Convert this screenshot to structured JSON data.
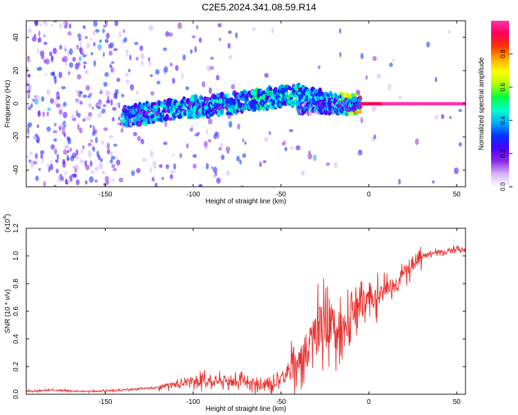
{
  "page": {
    "title": "C2E5.2024.341.08.59.R14"
  },
  "chart_data": [
    {
      "type": "heatmap",
      "title": "C2E5.2024.341.08.59.R14",
      "xlabel": "Height of straight line (km)",
      "ylabel": "Frequency (Hz)",
      "xlim": [
        -195,
        55
      ],
      "ylim": [
        -50,
        50
      ],
      "x_ticks": [
        -150,
        -100,
        -50,
        0,
        50
      ],
      "y_ticks": [
        -40,
        -20,
        0,
        20,
        40
      ],
      "colorbar": {
        "label": "Normalized spectral amplitude",
        "range": [
          0,
          1
        ],
        "ticks": [
          "0.0",
          "0.2",
          "0.4",
          "0.6",
          "0.8"
        ],
        "colormap": [
          "#ffffff",
          "#d9b3ff",
          "#8a2be2",
          "#4b00ff",
          "#0033ff",
          "#00aaff",
          "#00ffcc",
          "#00ff44",
          "#aaff00",
          "#ffff00",
          "#ffaa00",
          "#ff3300",
          "#ff0055",
          "#ff33aa"
        ]
      },
      "grid": false,
      "ridge": [
        {
          "x": -140,
          "f": -8,
          "amp": 0.45
        },
        {
          "x": -120,
          "f": -5,
          "amp": 0.5
        },
        {
          "x": -100,
          "f": -2,
          "amp": 0.5
        },
        {
          "x": -80,
          "f": 0,
          "amp": 0.5
        },
        {
          "x": -60,
          "f": 3,
          "amp": 0.55
        },
        {
          "x": -40,
          "f": 5,
          "amp": 0.55
        },
        {
          "x": -30,
          "f": 3,
          "amp": 0.5
        },
        {
          "x": -20,
          "f": 0,
          "amp": 0.55
        },
        {
          "x": -10,
          "f": 0,
          "amp": 0.8
        },
        {
          "x": 0,
          "f": 0,
          "amp": 0.95
        },
        {
          "x": 20,
          "f": 0,
          "amp": 0.98
        },
        {
          "x": 55,
          "f": 0,
          "amp": 1.0
        }
      ],
      "secondary_ridge": [
        {
          "x": -40,
          "f": -3,
          "amp": 0.4
        },
        {
          "x": -20,
          "f": -2,
          "amp": 0.45
        },
        {
          "x": -5,
          "f": 0,
          "amp": 0.5
        }
      ]
    },
    {
      "type": "line",
      "xlabel": "Height of straight line (km)",
      "ylabel": "SNR (10 * v/v)",
      "y_multiplier_label": "(x10",
      "y_multiplier_exp": "4",
      "xlim": [
        -195,
        55
      ],
      "ylim": [
        0,
        1.2
      ],
      "x_ticks": [
        -150,
        -100,
        -50,
        0,
        50
      ],
      "y_ticks": [
        "0.0",
        "0.2",
        "0.4",
        "0.6",
        "0.8",
        "1.0",
        "1.2"
      ],
      "grid": false,
      "series": [
        {
          "color": "#e8312f",
          "x": [
            -195,
            -180,
            -160,
            -140,
            -130,
            -120,
            -110,
            -100,
            -90,
            -80,
            -70,
            -60,
            -55,
            -50,
            -45,
            -40,
            -35,
            -30,
            -25,
            -20,
            -15,
            -10,
            -5,
            0,
            5,
            10,
            15,
            20,
            25,
            30,
            40,
            50,
            55
          ],
          "y": [
            0.02,
            0.03,
            0.02,
            0.03,
            0.04,
            0.05,
            0.07,
            0.09,
            0.1,
            0.1,
            0.08,
            0.06,
            0.08,
            0.12,
            0.18,
            0.25,
            0.32,
            0.45,
            0.5,
            0.45,
            0.4,
            0.55,
            0.62,
            0.72,
            0.7,
            0.78,
            0.8,
            0.87,
            0.95,
            1.0,
            1.03,
            1.05,
            1.04
          ]
        }
      ]
    }
  ]
}
